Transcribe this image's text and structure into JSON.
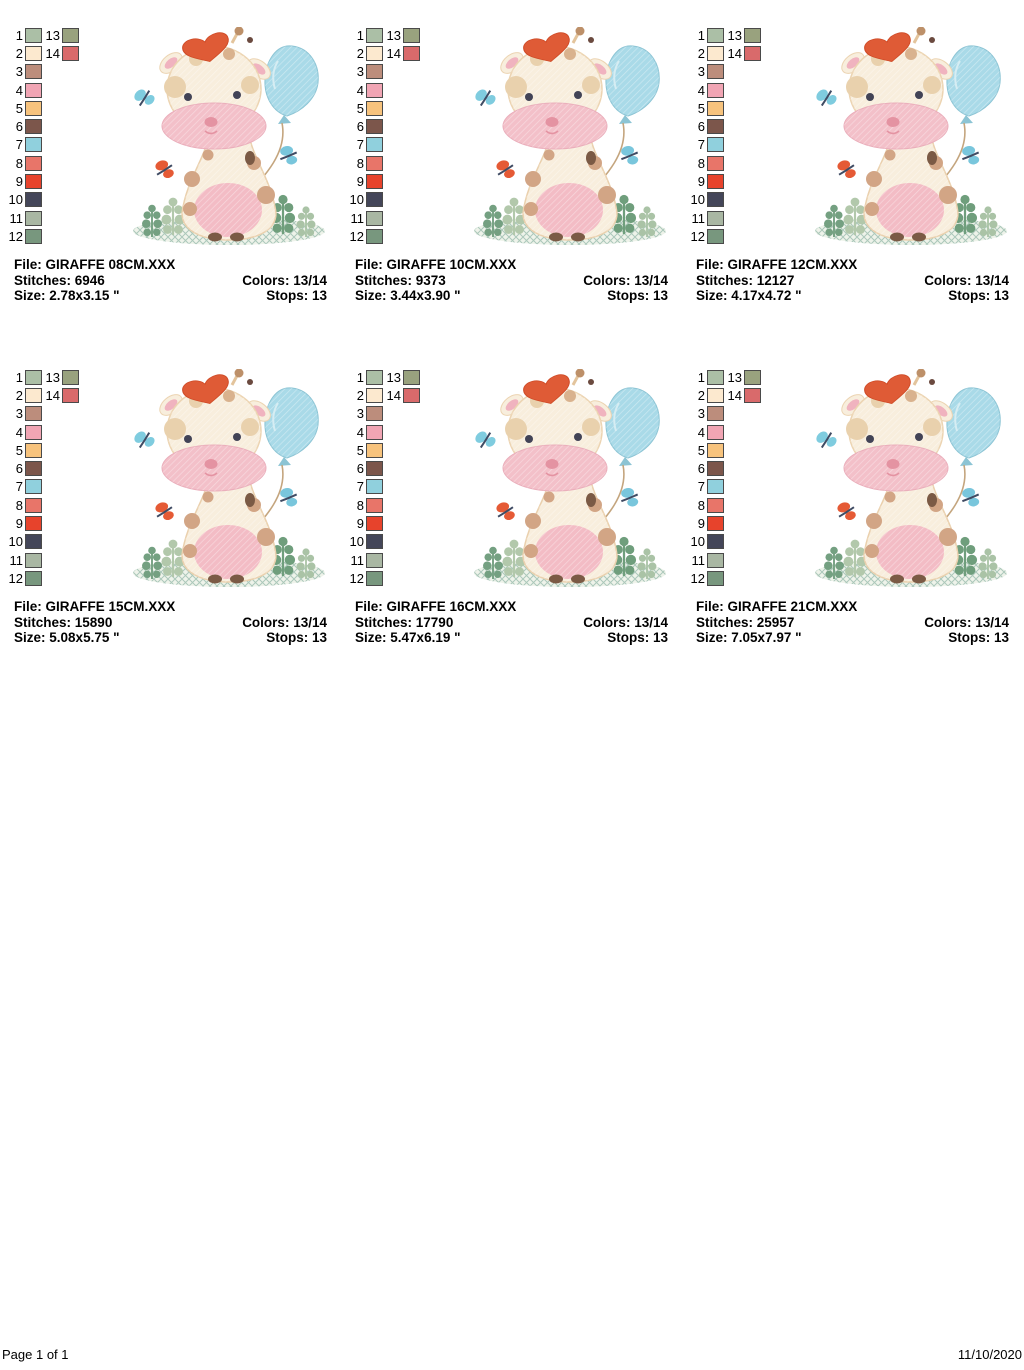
{
  "labels": {
    "file": "File:",
    "stitches": "Stitches:",
    "colors": "Colors:",
    "size": "Size:",
    "stops": "Stops:"
  },
  "designs": [
    {
      "file": "GIRAFFE 08CM.XXX",
      "stitches": "6946",
      "colors": "13/14",
      "size": "2.78x3.15 \"",
      "stops": "13"
    },
    {
      "file": "GIRAFFE 10CM.XXX",
      "stitches": "9373",
      "colors": "13/14",
      "size": "3.44x3.90 \"",
      "stops": "13"
    },
    {
      "file": "GIRAFFE 12CM.XXX",
      "stitches": "12127",
      "colors": "13/14",
      "size": "4.17x4.72 \"",
      "stops": "13"
    },
    {
      "file": "GIRAFFE 15CM.XXX",
      "stitches": "15890",
      "colors": "13/14",
      "size": "5.08x5.75 \"",
      "stops": "13"
    },
    {
      "file": "GIRAFFE 16CM.XXX",
      "stitches": "17790",
      "colors": "13/14",
      "size": "5.47x6.19 \"",
      "stops": "13"
    },
    {
      "file": "GIRAFFE 21CM.XXX",
      "stitches": "25957",
      "colors": "13/14",
      "size": "7.05x7.97 \"",
      "stops": "13"
    }
  ],
  "palette": {
    "threads": [
      {
        "n": "1",
        "hex": "#abbfa6"
      },
      {
        "n": "2",
        "hex": "#fce9cf"
      },
      {
        "n": "3",
        "hex": "#bc8d7c"
      },
      {
        "n": "4",
        "hex": "#f1a5b4"
      },
      {
        "n": "5",
        "hex": "#f7c37d"
      },
      {
        "n": "6",
        "hex": "#7c564b"
      },
      {
        "n": "7",
        "hex": "#90d0dd"
      },
      {
        "n": "8",
        "hex": "#e87569"
      },
      {
        "n": "9",
        "hex": "#e7432c"
      },
      {
        "n": "10",
        "hex": "#444659"
      },
      {
        "n": "11",
        "hex": "#a9b7a3"
      },
      {
        "n": "12",
        "hex": "#78977e"
      },
      {
        "n": "13",
        "hex": "#99a27e"
      },
      {
        "n": "14",
        "hex": "#d96a6b"
      }
    ]
  },
  "footer": {
    "left": "Page 1 of 1",
    "right": "11/10/2020"
  }
}
